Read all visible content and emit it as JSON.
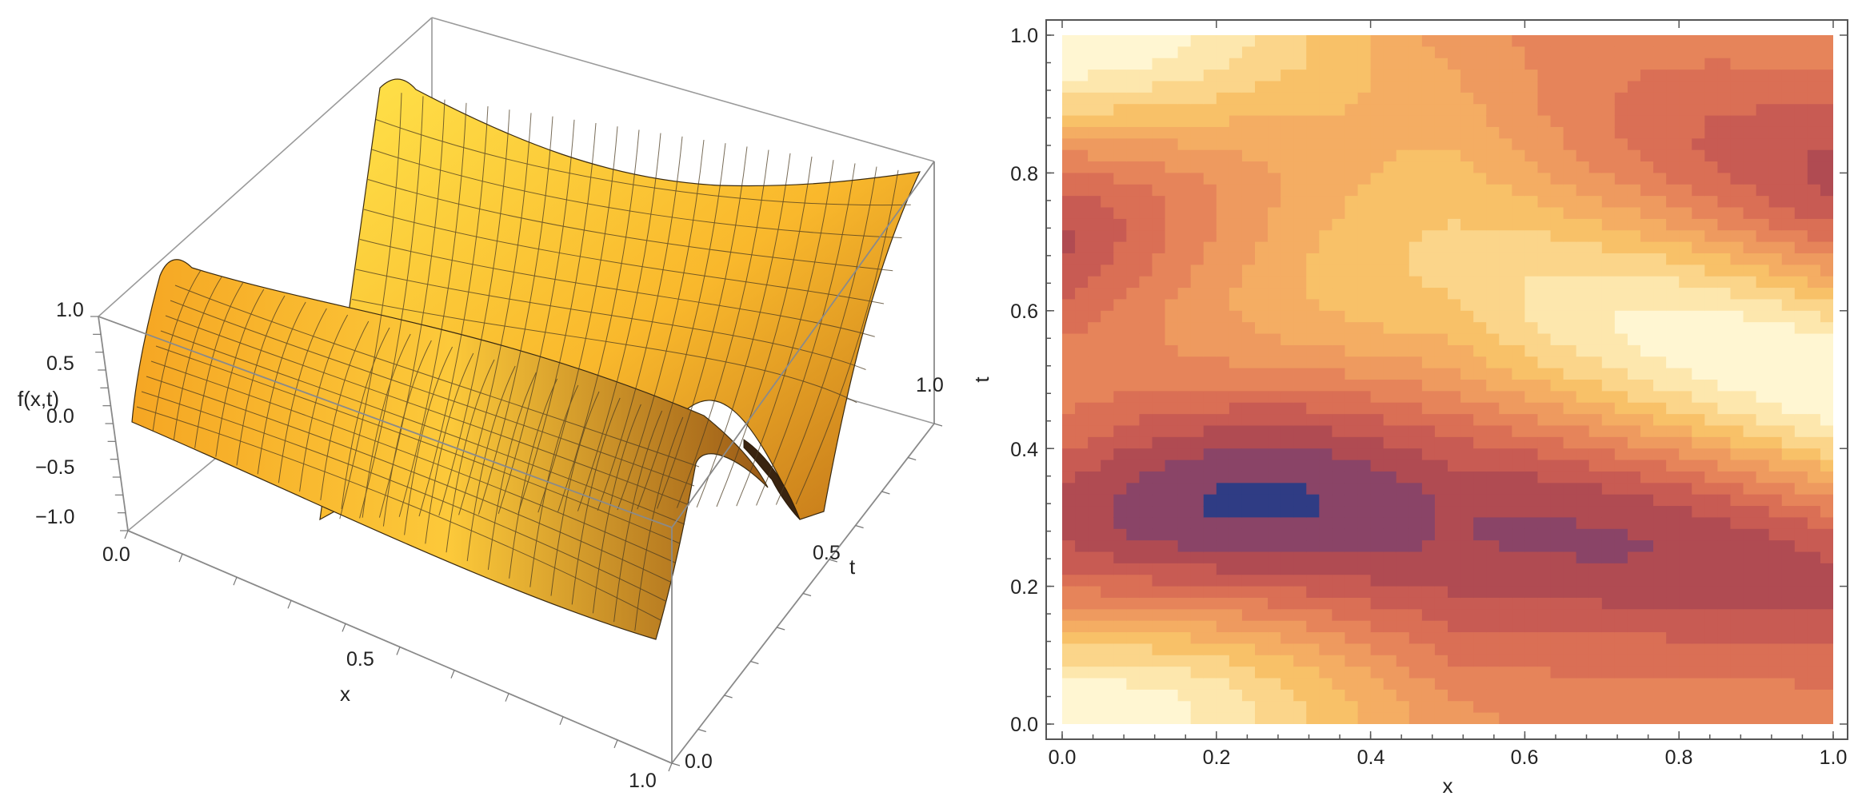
{
  "chart_data": [
    {
      "type": "surface",
      "xlabel": "x",
      "ylabel": "t",
      "zlabel": "f(x,t)",
      "xlim": [
        0,
        1
      ],
      "ylim": [
        0,
        1
      ],
      "zlim": [
        -1.2,
        1.2
      ],
      "x_ticks": [
        "0.0",
        "0.5",
        "1.0"
      ],
      "t_ticks": [
        "0.0",
        "0.5",
        "1.0"
      ],
      "z_ticks": [
        "1.0",
        "0.5",
        "0.0",
        "−0.5",
        "−1.0"
      ],
      "mesh_lines": 25,
      "surface_color": "#FDBF2D"
    },
    {
      "type": "contour",
      "xlabel": "x",
      "ylabel": "t",
      "xlim": [
        0,
        1
      ],
      "ylim": [
        0,
        1
      ],
      "x_ticks": [
        "0.0",
        "0.2",
        "0.4",
        "0.6",
        "0.8",
        "1.0"
      ],
      "y_ticks": [
        "0.0",
        "0.2",
        "0.4",
        "0.6",
        "0.8",
        "1.0"
      ],
      "levels": 12,
      "colormap": [
        "#2f3c84",
        "#8a4467",
        "#b04b52",
        "#c85b53",
        "#da6f55",
        "#e6845a",
        "#ee9a5f",
        "#f4ad63",
        "#f8c168",
        "#fbd58a",
        "#fde7ad",
        "#fff6d2",
        "#fffbe6"
      ]
    }
  ]
}
